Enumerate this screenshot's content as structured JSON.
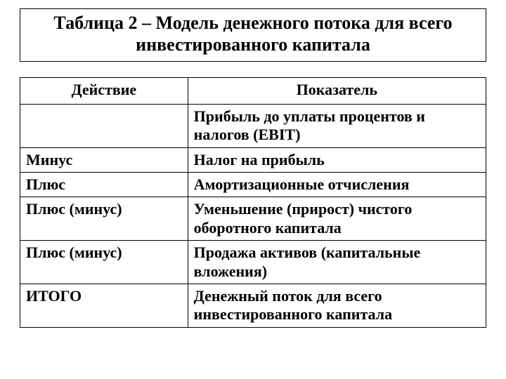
{
  "title": "Таблица 2 – Модель денежного потока для всего инвестированного капитала",
  "table": {
    "headers": {
      "action": "Действие",
      "indicator": "Показатель"
    },
    "rows": [
      {
        "action": "",
        "indicator": "Прибыль до уплаты процентов и налогов (EBIT)",
        "bold": true
      },
      {
        "action": "Минус",
        "indicator": "Налог на прибыль",
        "bold": true
      },
      {
        "action": "Плюс",
        "indicator": "Амортизационные отчисления",
        "bold": true
      },
      {
        "action": "Плюс (минус)",
        "indicator": "Уменьшение (прирост) чистого оборотного капитала",
        "bold": true
      },
      {
        "action": "Плюс (минус)",
        "indicator": "Продажа активов (капитальные вложения)",
        "bold": true
      },
      {
        "action": "ИТОГО",
        "indicator": "Денежный поток для всего инвестированного капитала",
        "bold": true
      }
    ],
    "column_widths_pct": [
      36,
      64
    ],
    "border_color": "#000000",
    "background_color": "#ffffff",
    "header_fontsize": 22,
    "cell_fontsize": 22
  },
  "title_fontsize": 26
}
